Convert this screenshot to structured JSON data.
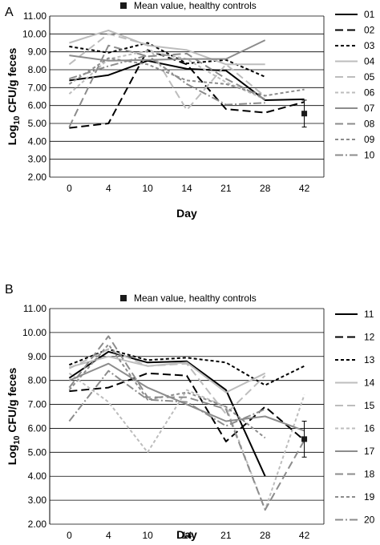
{
  "chart_data": [
    {
      "type": "line",
      "panel_label": "A",
      "x": [
        "0",
        "4",
        "10",
        "14",
        "21",
        "28",
        "42"
      ],
      "xlabel": "Day",
      "ylabel_main": "Log",
      "ylabel_sub": "10",
      "ylabel_rest": " CFU/g feces",
      "ylim": [
        2.0,
        11.0
      ],
      "yticks": [
        "2.00",
        "3.00",
        "4.00",
        "5.00",
        "6.00",
        "7.00",
        "8.00",
        "9.00",
        "10.00",
        "11.00"
      ],
      "grid": "horizontal",
      "legend_position": "right",
      "marker_label": "Mean value, healthy controls",
      "control": {
        "x": "42",
        "mean": 5.55,
        "err_low": 4.8,
        "err_high": 6.3
      },
      "series": [
        {
          "name": "01",
          "color": "#000000",
          "dash": "solid",
          "values": [
            7.4,
            7.7,
            8.5,
            8.05,
            7.95,
            6.3,
            6.35
          ]
        },
        {
          "name": "02",
          "color": "#000000",
          "dash": "long",
          "values": [
            4.75,
            5.0,
            9.1,
            8.3,
            5.8,
            5.6,
            6.2
          ]
        },
        {
          "name": "03",
          "color": "#000000",
          "dash": "short",
          "values": [
            9.3,
            8.95,
            9.5,
            8.35,
            8.55,
            7.6,
            null
          ]
        },
        {
          "name": "04",
          "color": "#bdbdbd",
          "dash": "solid",
          "values": [
            9.5,
            10.2,
            9.35,
            9.1,
            8.3,
            8.3,
            null
          ]
        },
        {
          "name": "05",
          "color": "#bdbdbd",
          "dash": "long",
          "values": [
            8.3,
            10.0,
            9.4,
            5.75,
            8.3,
            6.5,
            null
          ]
        },
        {
          "name": "06",
          "color": "#bdbdbd",
          "dash": "short",
          "values": [
            6.65,
            8.6,
            9.05,
            8.6,
            7.3,
            6.35,
            null
          ]
        },
        {
          "name": "07",
          "color": "#8c8c8c",
          "dash": "solid",
          "values": [
            8.8,
            8.5,
            8.55,
            8.6,
            8.6,
            9.65,
            null
          ]
        },
        {
          "name": "08",
          "color": "#8c8c8c",
          "dash": "long",
          "values": [
            4.8,
            9.35,
            8.75,
            8.9,
            7.5,
            6.35,
            null
          ]
        },
        {
          "name": "09",
          "color": "#8c8c8c",
          "dash": "short",
          "values": [
            7.2,
            8.65,
            8.3,
            7.4,
            7.2,
            6.55,
            6.9
          ]
        },
        {
          "name": "10",
          "color": "#8c8c8c",
          "dash": "dashdot",
          "values": [
            7.5,
            8.2,
            8.8,
            7.2,
            6.05,
            6.15,
            null
          ]
        }
      ]
    },
    {
      "type": "line",
      "panel_label": "B",
      "x": [
        "0",
        "4",
        "10",
        "14",
        "21",
        "28",
        "42"
      ],
      "xlabel": "Day",
      "ylabel_main": "Log",
      "ylabel_sub": "10",
      "ylabel_rest": " CFU/g feces",
      "ylim": [
        2.0,
        11.0
      ],
      "yticks": [
        "2.00",
        "3.00",
        "4.00",
        "5.00",
        "6.00",
        "7.00",
        "8.00",
        "9.00",
        "10.00",
        "11.00"
      ],
      "grid": "horizontal",
      "legend_position": "right",
      "marker_label": "Mean value, healthy controls",
      "control": {
        "x": "42",
        "mean": 5.55,
        "err_low": 4.8,
        "err_high": 6.3
      },
      "series": [
        {
          "name": "11",
          "color": "#000000",
          "dash": "solid",
          "values": [
            8.1,
            9.2,
            8.75,
            8.8,
            7.6,
            4.0,
            null
          ]
        },
        {
          "name": "12",
          "color": "#000000",
          "dash": "long",
          "values": [
            7.55,
            7.7,
            8.3,
            8.2,
            5.45,
            6.9,
            5.5
          ]
        },
        {
          "name": "13",
          "color": "#000000",
          "dash": "short",
          "values": [
            8.65,
            9.3,
            8.85,
            8.95,
            8.75,
            7.8,
            8.6
          ]
        },
        {
          "name": "14",
          "color": "#bdbdbd",
          "dash": "solid",
          "values": [
            8.55,
            9.0,
            8.6,
            8.75,
            7.5,
            8.3,
            null
          ]
        },
        {
          "name": "15",
          "color": "#bdbdbd",
          "dash": "long",
          "values": [
            8.5,
            9.3,
            8.6,
            8.7,
            6.6,
            8.2,
            null
          ]
        },
        {
          "name": "16",
          "color": "#bdbdbd",
          "dash": "short",
          "values": [
            8.3,
            7.1,
            5.0,
            7.6,
            6.9,
            2.6,
            7.4
          ]
        },
        {
          "name": "17",
          "color": "#8c8c8c",
          "dash": "solid",
          "values": [
            8.0,
            8.7,
            7.7,
            7.0,
            6.3,
            6.5,
            5.9
          ]
        },
        {
          "name": "18",
          "color": "#8c8c8c",
          "dash": "long",
          "values": [
            7.7,
            9.85,
            7.3,
            7.3,
            6.8,
            2.6,
            5.5
          ]
        },
        {
          "name": "19",
          "color": "#8c8c8c",
          "dash": "short",
          "values": [
            7.6,
            9.5,
            7.2,
            7.5,
            6.9,
            5.6,
            null
          ]
        },
        {
          "name": "20",
          "color": "#8c8c8c",
          "dash": "dashdot",
          "values": [
            6.3,
            8.4,
            7.2,
            7.1,
            6.1,
            6.8,
            null
          ]
        }
      ]
    }
  ]
}
